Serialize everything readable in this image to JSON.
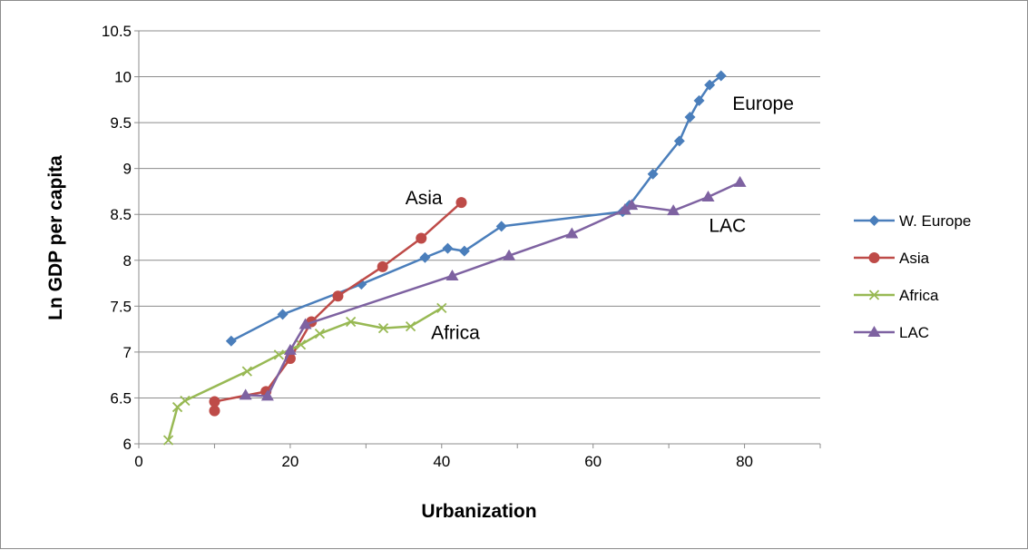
{
  "chart_data": {
    "type": "line",
    "title": "",
    "xlabel": "Urbanization",
    "ylabel": "Ln GDP per capita",
    "xlim": [
      0,
      90
    ],
    "ylim": [
      6,
      10.5
    ],
    "x_ticks": [
      0,
      20,
      40,
      60,
      80
    ],
    "y_ticks": [
      6,
      6.5,
      7,
      7.5,
      8,
      8.5,
      9,
      9.5,
      10,
      10.5
    ],
    "grid": "horizontal",
    "legend_position": "right",
    "series": [
      {
        "name": "W. Europe",
        "color": "#4a7ebb",
        "marker": "diamond",
        "points": [
          [
            12.2,
            7.12
          ],
          [
            19.0,
            7.41
          ],
          [
            29.4,
            7.74
          ],
          [
            37.8,
            8.03
          ],
          [
            40.8,
            8.13
          ],
          [
            43.0,
            8.1
          ],
          [
            47.9,
            8.37
          ],
          [
            63.9,
            8.53
          ],
          [
            64.8,
            8.6
          ],
          [
            67.9,
            8.94
          ],
          [
            71.4,
            9.3
          ],
          [
            72.8,
            9.56
          ],
          [
            74.0,
            9.74
          ],
          [
            75.4,
            9.91
          ],
          [
            76.9,
            10.01
          ]
        ]
      },
      {
        "name": "Asia",
        "color": "#be4b48",
        "marker": "circle",
        "points": [
          [
            10.0,
            6.36
          ],
          [
            10.0,
            6.46
          ],
          [
            16.8,
            6.57
          ],
          [
            20.0,
            6.93
          ],
          [
            22.8,
            7.33
          ],
          [
            26.3,
            7.61
          ],
          [
            32.2,
            7.93
          ],
          [
            37.3,
            8.24
          ],
          [
            42.6,
            8.63
          ]
        ]
      },
      {
        "name": "Africa",
        "color": "#98b954",
        "marker": "x",
        "points": [
          [
            3.9,
            6.04
          ],
          [
            5.1,
            6.4
          ],
          [
            6.1,
            6.47
          ],
          [
            14.3,
            6.79
          ],
          [
            18.5,
            6.97
          ],
          [
            21.4,
            7.08
          ],
          [
            23.9,
            7.2
          ],
          [
            28.0,
            7.33
          ],
          [
            32.3,
            7.26
          ],
          [
            35.9,
            7.28
          ],
          [
            40.0,
            7.48
          ]
        ]
      },
      {
        "name": "LAC",
        "color": "#7e62a1",
        "marker": "triangle",
        "points": [
          [
            14.1,
            6.53
          ],
          [
            17.0,
            6.52
          ],
          [
            20.0,
            7.02
          ],
          [
            22.0,
            7.3
          ],
          [
            41.4,
            7.83
          ],
          [
            48.9,
            8.05
          ],
          [
            57.2,
            8.29
          ],
          [
            64.2,
            8.55
          ],
          [
            65.1,
            8.6
          ],
          [
            70.6,
            8.54
          ],
          [
            75.2,
            8.69
          ],
          [
            79.4,
            8.85
          ]
        ]
      }
    ],
    "annotations": [
      {
        "text": "Europe",
        "x": 78.4,
        "y": 9.64
      },
      {
        "text": "Asia",
        "x": 35.2,
        "y": 8.61
      },
      {
        "text": "Africa",
        "x": 38.6,
        "y": 7.14
      },
      {
        "text": "LAC",
        "x": 75.3,
        "y": 8.31
      }
    ]
  }
}
